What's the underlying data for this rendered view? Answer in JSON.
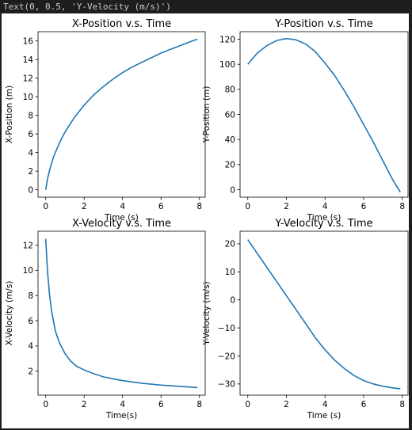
{
  "output": {
    "text": "Text(0, 0.5, 'Y-Velocity (m/s)')"
  },
  "colors": {
    "line": "#1f77b4",
    "output_bg": "#1e1e1e",
    "output_text": "#cccccc"
  },
  "chart_data": [
    {
      "type": "line",
      "title": "X-Position v.s. Time",
      "xlabel": "Time (s)",
      "ylabel": "X-Position (m)",
      "xlim": [
        -0.4,
        8.3
      ],
      "ylim": [
        -0.8,
        17.0
      ],
      "xticks": [
        0,
        2,
        4,
        6,
        8
      ],
      "yticks": [
        0,
        2,
        4,
        6,
        8,
        10,
        12,
        14,
        16
      ],
      "x": [
        0,
        0.1,
        0.2,
        0.4,
        0.6,
        0.8,
        1.0,
        1.5,
        2.0,
        2.5,
        3.0,
        3.5,
        4.0,
        4.5,
        5.0,
        5.5,
        6.0,
        6.5,
        7.0,
        7.5,
        7.9
      ],
      "y": [
        0,
        1.2,
        2.1,
        3.5,
        4.5,
        5.4,
        6.2,
        7.8,
        9.1,
        10.2,
        11.1,
        11.9,
        12.6,
        13.2,
        13.7,
        14.2,
        14.7,
        15.1,
        15.5,
        15.9,
        16.2
      ]
    },
    {
      "type": "line",
      "title": "Y-Position v.s. Time",
      "xlabel": "Time (s)",
      "ylabel": "Y-Position (m)",
      "xlim": [
        -0.4,
        8.3
      ],
      "ylim": [
        -6.0,
        126.0
      ],
      "xticks": [
        0,
        2,
        4,
        6,
        8
      ],
      "yticks": [
        0,
        20,
        40,
        60,
        80,
        100,
        120
      ],
      "x": [
        0,
        0.5,
        1.0,
        1.5,
        2.0,
        2.5,
        3.0,
        3.5,
        4.0,
        4.5,
        5.0,
        5.5,
        6.0,
        6.5,
        7.0,
        7.5,
        7.9
      ],
      "y": [
        100,
        109,
        115,
        119,
        120.5,
        119.5,
        116,
        110,
        101,
        91,
        79,
        66,
        52,
        38,
        23,
        8,
        -2
      ]
    },
    {
      "type": "line",
      "title": "X-Velocity v.s. Time",
      "xlabel": "Time(s)",
      "ylabel": "X-Velocity (m/s)",
      "xlim": [
        -0.4,
        8.3
      ],
      "ylim": [
        0.1,
        13.1
      ],
      "xticks": [
        0,
        2,
        4,
        6,
        8
      ],
      "yticks": [
        2,
        4,
        6,
        8,
        10,
        12
      ],
      "x": [
        0,
        0.1,
        0.2,
        0.3,
        0.5,
        0.7,
        1.0,
        1.3,
        1.6,
        2.0,
        2.5,
        3.0,
        3.5,
        4.0,
        5.0,
        6.0,
        7.0,
        7.9
      ],
      "y": [
        12.5,
        9.8,
        8.0,
        6.8,
        5.2,
        4.3,
        3.4,
        2.8,
        2.4,
        2.1,
        1.8,
        1.55,
        1.4,
        1.25,
        1.05,
        0.9,
        0.8,
        0.7
      ]
    },
    {
      "type": "line",
      "title": "Y-Velocity v.s. Time",
      "xlabel": "Time (s)",
      "ylabel": "Y-Velocity (m/s)",
      "xlim": [
        -0.4,
        8.3
      ],
      "ylim": [
        -34.0,
        24.5
      ],
      "xticks": [
        0,
        2,
        4,
        6,
        8
      ],
      "yticks": [
        -30,
        -20,
        -10,
        0,
        10,
        20
      ],
      "x": [
        0,
        0.5,
        1.0,
        1.5,
        2.0,
        2.5,
        3.0,
        3.5,
        4.0,
        4.5,
        5.0,
        5.5,
        6.0,
        6.5,
        7.0,
        7.5,
        7.9
      ],
      "y": [
        21.5,
        16.5,
        11.5,
        6.5,
        1.5,
        -3.5,
        -8.5,
        -13.5,
        -17.8,
        -21.5,
        -24.5,
        -27.0,
        -28.8,
        -30.0,
        -30.8,
        -31.4,
        -31.7
      ]
    }
  ]
}
